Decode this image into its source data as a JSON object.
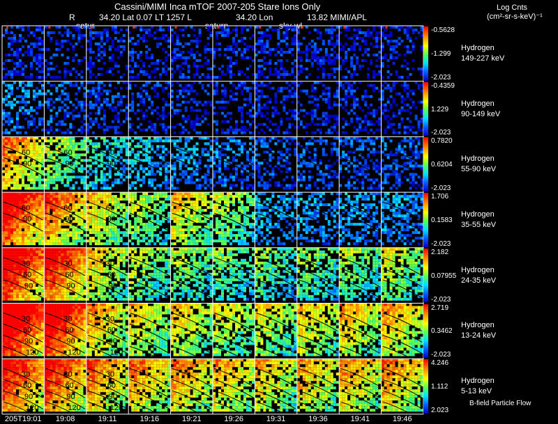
{
  "header": {
    "title": "Cassini/MIMI Inca mTOF  2007-205   Stare   Ions Only",
    "r_label": "R",
    "coords": "34.20 Lat 0.07 LT 1257 L",
    "lon": "34.20 Lon",
    "val": "13.82  MIMI/APL",
    "tag1": "satur",
    "tag2": "saturn",
    "tag3": "sky-wl"
  },
  "units": {
    "line1": "Log Cnts",
    "line2": "(cm²-sr-s-keV)⁻¹"
  },
  "footer": {
    "flow_label": "B-field Particle Flow"
  },
  "colors": {
    "grid": "#ffffff",
    "background": "#000000",
    "line": "#000000"
  },
  "chart_data": {
    "type": "heatmap",
    "title": "Cassini/MIMI Inca mTOF 2007-205 Stare Ions Only",
    "times": [
      "205T19:01",
      "19:08",
      "19:11",
      "19:16",
      "19:21",
      "19:26",
      "19:31",
      "19:36",
      "19:41",
      "19:46"
    ],
    "rows": [
      {
        "species": "Hydrogen",
        "energy": "149-227 keV",
        "max": "-0.5628",
        "mid": "-1.299",
        "min": "-2.023",
        "intensity": [
          0.05,
          0.05,
          0.05,
          0.05,
          0.05,
          0.05,
          0.05,
          0.05,
          0.05,
          0.05
        ],
        "contours": []
      },
      {
        "species": "Hydrogen",
        "energy": "90-149 keV",
        "max": "-0.4359",
        "mid": "1.229",
        "min": "-2.023",
        "intensity": [
          0.18,
          0.12,
          0.09,
          0.07,
          0.06,
          0.05,
          0.05,
          0.05,
          0.05,
          0.05
        ],
        "contours": []
      },
      {
        "species": "Hydrogen",
        "energy": "55-90 keV",
        "max": "0.7820",
        "mid": "0.6204",
        "min": "-2.023",
        "intensity": [
          0.65,
          0.45,
          0.3,
          0.25,
          0.2,
          0.15,
          0.12,
          0.12,
          0.12,
          0.12
        ],
        "contours": [
          "60",
          "90"
        ]
      },
      {
        "species": "Hydrogen",
        "energy": "35-55 keV",
        "max": "1.706",
        "mid": "0.1583",
        "min": "-2.023",
        "intensity": [
          0.85,
          0.7,
          0.55,
          0.45,
          0.55,
          0.45,
          0.22,
          0.2,
          0.2,
          0.2
        ],
        "contours": [
          "60",
          "90"
        ]
      },
      {
        "species": "Hydrogen",
        "energy": "24-35 keV",
        "max": "2.182",
        "mid": "0.07955",
        "min": "-2.023",
        "intensity": [
          0.88,
          0.82,
          0.55,
          0.45,
          0.42,
          0.38,
          0.38,
          0.4,
          0.42,
          0.48
        ],
        "contours": [
          "30",
          "60",
          "90"
        ]
      },
      {
        "species": "Hydrogen",
        "energy": "13-24 keV",
        "max": "2.719",
        "mid": "0.3462",
        "min": "-2.023",
        "intensity": [
          0.95,
          0.9,
          0.6,
          0.55,
          0.55,
          0.5,
          0.5,
          0.55,
          0.58,
          0.6
        ],
        "contours": [
          "30",
          "60",
          "90",
          "120"
        ]
      },
      {
        "species": "Hydrogen",
        "energy": "5-13 keV",
        "max": "4.246",
        "mid": "1.112",
        "min": "2.023",
        "intensity": [
          0.8,
          0.78,
          0.68,
          0.65,
          0.64,
          0.6,
          0.58,
          0.6,
          0.62,
          0.65
        ],
        "contours": [
          "30",
          "60",
          "90",
          "120"
        ]
      }
    ]
  }
}
